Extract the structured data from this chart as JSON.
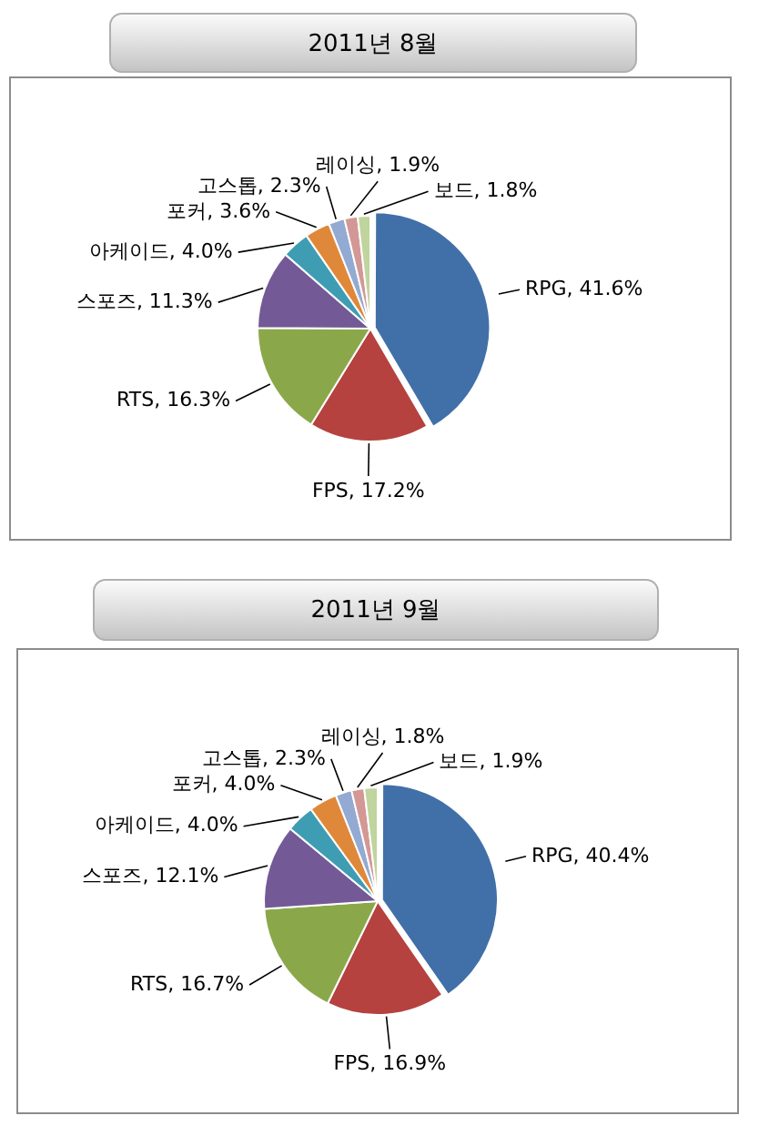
{
  "chart_data": [
    {
      "type": "pie",
      "title": "2011년 8월",
      "categories": [
        "RPG",
        "FPS",
        "RTS",
        "스포즈",
        "아케이드",
        "포커",
        "고스톱",
        "레이싱",
        "보드"
      ],
      "values": [
        41.6,
        17.2,
        16.3,
        11.3,
        4.0,
        3.6,
        2.3,
        1.9,
        1.8
      ],
      "colors": [
        "#4170a8",
        "#b5423f",
        "#8aa84a",
        "#735a96",
        "#3f9db3",
        "#e0883a",
        "#93aad2",
        "#d39896",
        "#c0d49e"
      ],
      "value_labels": [
        "41.6%",
        "17.2%",
        "16.3%",
        "11.3%",
        "4.0%",
        "3.6%",
        "2.3%",
        "1.9%",
        "1.8%"
      ]
    },
    {
      "type": "pie",
      "title": "2011년 9월",
      "categories": [
        "RPG",
        "FPS",
        "RTS",
        "스포즈",
        "아케이드",
        "포커",
        "고스톱",
        "레이싱",
        "보드"
      ],
      "values": [
        40.4,
        16.9,
        16.7,
        12.1,
        4.0,
        4.0,
        2.3,
        1.8,
        1.9
      ],
      "colors": [
        "#4170a8",
        "#b5423f",
        "#8aa84a",
        "#735a96",
        "#3f9db3",
        "#e0883a",
        "#93aad2",
        "#d39896",
        "#c0d49e"
      ],
      "value_labels": [
        "40.4%",
        "16.9%",
        "16.7%",
        "12.1%",
        "4.0%",
        "4.0%",
        "2.3%",
        "1.8%",
        "1.9%"
      ]
    }
  ]
}
